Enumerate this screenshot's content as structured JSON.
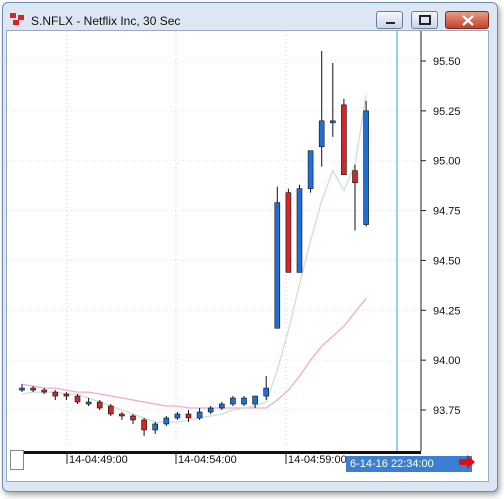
{
  "window": {
    "title": "S.NFLX - Netflix Inc, 30 Sec",
    "colors": {
      "up": "#1f6fd6",
      "down": "#d0282a",
      "ma_fast": "#c9e3c9",
      "ma_slow": "#f1a7d6",
      "cursor": "#3aa0b5",
      "time_highlight": "#3a7fd4"
    }
  },
  "icons": [
    "app-icon",
    "minimize-icon",
    "maximize-icon",
    "close-icon",
    "scroll-right-arrow-icon"
  ],
  "chart_data": {
    "type": "candlestick",
    "title": "",
    "ylim": [
      93.6,
      95.55
    ],
    "y_ticks": [
      "95.50",
      "95.25",
      "95.00",
      "94.75",
      "94.50",
      "94.25",
      "94.00",
      "93.75"
    ],
    "x_tick_labels": [
      "14-04:49:00",
      "14-04:54:00",
      "14-04:59:00"
    ],
    "current_time_label": "6-14-16 22:34:00",
    "candles": [
      {
        "o": 93.86,
        "h": 93.88,
        "l": 93.84,
        "c": 93.86
      },
      {
        "o": 93.86,
        "h": 93.87,
        "l": 93.84,
        "c": 93.85
      },
      {
        "o": 93.85,
        "h": 93.86,
        "l": 93.83,
        "c": 93.84
      },
      {
        "o": 93.84,
        "h": 93.85,
        "l": 93.8,
        "c": 93.82
      },
      {
        "o": 93.83,
        "h": 93.84,
        "l": 93.8,
        "c": 93.82
      },
      {
        "o": 93.82,
        "h": 93.83,
        "l": 93.78,
        "c": 93.79
      },
      {
        "o": 93.79,
        "h": 93.81,
        "l": 93.77,
        "c": 93.79
      },
      {
        "o": 93.79,
        "h": 93.8,
        "l": 93.75,
        "c": 93.76
      },
      {
        "o": 93.77,
        "h": 93.78,
        "l": 93.72,
        "c": 93.73
      },
      {
        "o": 93.73,
        "h": 93.74,
        "l": 93.7,
        "c": 93.72
      },
      {
        "o": 93.72,
        "h": 93.73,
        "l": 93.68,
        "c": 93.7
      },
      {
        "o": 93.7,
        "h": 93.71,
        "l": 93.62,
        "c": 93.65
      },
      {
        "o": 93.65,
        "h": 93.69,
        "l": 93.63,
        "c": 93.68
      },
      {
        "o": 93.68,
        "h": 93.72,
        "l": 93.67,
        "c": 93.71
      },
      {
        "o": 93.71,
        "h": 93.74,
        "l": 93.7,
        "c": 93.73
      },
      {
        "o": 93.73,
        "h": 93.75,
        "l": 93.69,
        "c": 93.71
      },
      {
        "o": 93.71,
        "h": 93.76,
        "l": 93.7,
        "c": 93.74
      },
      {
        "o": 93.74,
        "h": 93.77,
        "l": 93.73,
        "c": 93.76
      },
      {
        "o": 93.76,
        "h": 93.79,
        "l": 93.75,
        "c": 93.78
      },
      {
        "o": 93.78,
        "h": 93.82,
        "l": 93.77,
        "c": 93.81
      },
      {
        "o": 93.78,
        "h": 93.82,
        "l": 93.77,
        "c": 93.81
      },
      {
        "o": 93.78,
        "h": 93.82,
        "l": 93.76,
        "c": 93.82
      },
      {
        "o": 93.82,
        "h": 93.92,
        "l": 93.8,
        "c": 93.86
      },
      {
        "o": 94.16,
        "h": 94.87,
        "l": 94.16,
        "c": 94.79
      },
      {
        "o": 94.84,
        "h": 94.86,
        "l": 94.44,
        "c": 94.44
      },
      {
        "o": 94.44,
        "h": 94.88,
        "l": 94.44,
        "c": 94.86
      },
      {
        "o": 94.86,
        "h": 95.05,
        "l": 94.84,
        "c": 95.05
      },
      {
        "o": 95.07,
        "h": 95.55,
        "l": 94.97,
        "c": 95.2
      },
      {
        "o": 95.2,
        "h": 95.49,
        "l": 95.12,
        "c": 95.2
      },
      {
        "o": 95.28,
        "h": 95.31,
        "l": 94.93,
        "c": 94.93
      },
      {
        "o": 94.95,
        "h": 94.98,
        "l": 94.65,
        "c": 94.89
      },
      {
        "o": 94.68,
        "h": 95.3,
        "l": 94.67,
        "c": 95.25
      }
    ],
    "ma_fast": [
      93.83,
      93.84,
      93.84,
      93.84,
      93.83,
      93.83,
      93.81,
      93.79,
      93.77,
      93.75,
      93.73,
      93.71,
      93.69,
      93.69,
      93.69,
      93.7,
      93.71,
      93.72,
      93.73,
      93.75,
      93.76,
      93.77,
      93.79,
      93.95,
      94.15,
      94.38,
      94.6,
      94.8,
      94.95,
      94.85,
      94.98,
      95.33
    ],
    "ma_slow": [
      93.88,
      93.87,
      93.86,
      93.86,
      93.85,
      93.84,
      93.84,
      93.83,
      93.82,
      93.81,
      93.8,
      93.79,
      93.78,
      93.77,
      93.77,
      93.76,
      93.76,
      93.76,
      93.76,
      93.76,
      93.76,
      93.76,
      93.76,
      93.8,
      93.85,
      93.92,
      94.0,
      94.07,
      94.12,
      94.17,
      94.24,
      94.31
    ]
  }
}
